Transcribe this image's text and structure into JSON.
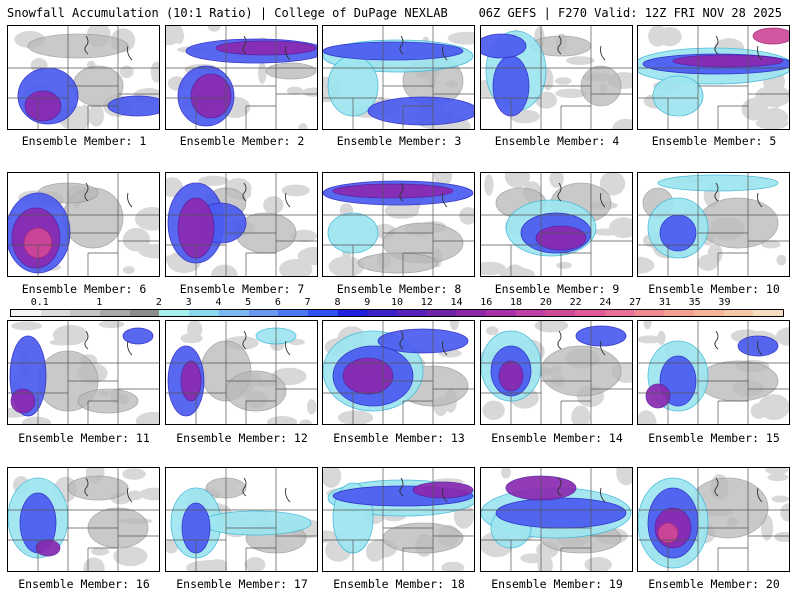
{
  "header": {
    "title_left": "Snowfall Accumulation (10:1 Ratio) | College of DuPage NEXLAB",
    "title_right": "06Z GEFS | F270 Valid: 12Z FRI NOV 28 2025"
  },
  "colorbar": {
    "tick_labels": [
      "0.1",
      "1",
      "2",
      "3",
      "4",
      "5",
      "6",
      "7",
      "8",
      "9",
      "10",
      "12",
      "14",
      "16",
      "18",
      "20",
      "22",
      "24",
      "27",
      "31",
      "35",
      "39"
    ],
    "colors": [
      "#f4f4f4",
      "#dcdcdc",
      "#c4c4c4",
      "#a8a8a8",
      "#8c8c8c",
      "#a6f0f0",
      "#8ad8ec",
      "#7cb8f0",
      "#6898f0",
      "#4c78f0",
      "#3050f0",
      "#2020e0",
      "#3c20c8",
      "#5820b8",
      "#7024a8",
      "#8c28a8",
      "#a830a8",
      "#c040a8",
      "#d04898",
      "#e05898",
      "#e87098",
      "#f08890",
      "#f4a090",
      "#f4b498",
      "#f6c8a8",
      "#f8dcc0"
    ]
  },
  "members": [
    {
      "label": "Ensemble Member: 1"
    },
    {
      "label": "Ensemble Member: 2"
    },
    {
      "label": "Ensemble Member: 3"
    },
    {
      "label": "Ensemble Member: 4"
    },
    {
      "label": "Ensemble Member: 5"
    },
    {
      "label": "Ensemble Member: 6"
    },
    {
      "label": "Ensemble Member: 7"
    },
    {
      "label": "Ensemble Member: 8"
    },
    {
      "label": "Ensemble Member: 9"
    },
    {
      "label": "Ensemble Member: 10"
    },
    {
      "label": "Ensemble Member: 11"
    },
    {
      "label": "Ensemble Member: 12"
    },
    {
      "label": "Ensemble Member: 13"
    },
    {
      "label": "Ensemble Member: 14"
    },
    {
      "label": "Ensemble Member: 15"
    },
    {
      "label": "Ensemble Member: 16"
    },
    {
      "label": "Ensemble Member: 17"
    },
    {
      "label": "Ensemble Member: 18"
    },
    {
      "label": "Ensemble Member: 19"
    },
    {
      "label": "Ensemble Member: 20"
    }
  ]
}
